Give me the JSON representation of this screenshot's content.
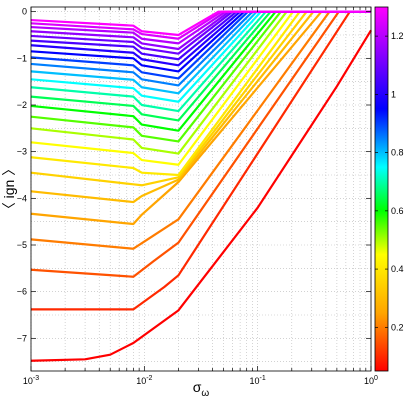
{
  "chart_data": {
    "type": "line",
    "xscale": "log",
    "xlim": [
      0.001,
      1
    ],
    "ylim": [
      -7.7,
      0.1
    ],
    "grid": true,
    "legend": "none",
    "x_ticks": [
      {
        "value": 0.001,
        "base": "10",
        "exp": "-3"
      },
      {
        "value": 0.01,
        "base": "10",
        "exp": "-2"
      },
      {
        "value": 0.1,
        "base": "10",
        "exp": "-1"
      },
      {
        "value": 1,
        "base": "10",
        "exp": "0"
      }
    ],
    "y_ticks": [
      0,
      -1,
      -2,
      -3,
      -4,
      -5,
      -6,
      -7
    ],
    "xlabel": {
      "base": "σ",
      "sub": "ω"
    },
    "ylabel": "〈 ign 〉",
    "colorbar": {
      "range": [
        0.05,
        1.3
      ],
      "ticks": [
        1.2,
        1,
        0.8,
        0.6,
        0.4,
        0.2
      ],
      "stops": [
        {
          "value": 0.05,
          "color": "#ff0000"
        },
        {
          "value": 0.25,
          "color": "#ffa500"
        },
        {
          "value": 0.45,
          "color": "#ffff00"
        },
        {
          "value": 0.6,
          "color": "#00ff00"
        },
        {
          "value": 0.75,
          "color": "#00ffff"
        },
        {
          "value": 0.95,
          "color": "#0000ff"
        },
        {
          "value": 1.3,
          "color": "#ff00ff"
        }
      ]
    },
    "dip_x": [
      0.008,
      0.0095,
      0.02
    ],
    "series": [
      {
        "c": 1.3,
        "values": [
          [
            0.001,
            -0.18
          ],
          [
            0.008,
            -0.3
          ],
          [
            0.0095,
            -0.42
          ],
          [
            0.02,
            -0.5
          ],
          [
            0.045,
            0.0
          ],
          [
            1,
            0.0
          ]
        ]
      },
      {
        "c": 1.25,
        "values": [
          [
            0.001,
            -0.25
          ],
          [
            0.008,
            -0.38
          ],
          [
            0.0095,
            -0.48
          ],
          [
            0.02,
            -0.58
          ],
          [
            0.048,
            0.0
          ],
          [
            1,
            0.0
          ]
        ]
      },
      {
        "c": 1.2,
        "values": [
          [
            0.001,
            -0.33
          ],
          [
            0.008,
            -0.45
          ],
          [
            0.0095,
            -0.58
          ],
          [
            0.02,
            -0.68
          ],
          [
            0.052,
            0.0
          ],
          [
            1,
            0.0
          ]
        ]
      },
      {
        "c": 1.15,
        "values": [
          [
            0.001,
            -0.42
          ],
          [
            0.008,
            -0.55
          ],
          [
            0.0095,
            -0.68
          ],
          [
            0.02,
            -0.8
          ],
          [
            0.056,
            0.0
          ],
          [
            1,
            0.0
          ]
        ]
      },
      {
        "c": 1.1,
        "values": [
          [
            0.001,
            -0.52
          ],
          [
            0.008,
            -0.65
          ],
          [
            0.0095,
            -0.78
          ],
          [
            0.02,
            -0.9
          ],
          [
            0.06,
            0.0
          ],
          [
            1,
            0.0
          ]
        ]
      },
      {
        "c": 1.05,
        "values": [
          [
            0.001,
            -0.62
          ],
          [
            0.008,
            -0.75
          ],
          [
            0.0095,
            -0.9
          ],
          [
            0.02,
            -1.02
          ],
          [
            0.065,
            0.0
          ],
          [
            1,
            0.0
          ]
        ]
      },
      {
        "c": 1.0,
        "values": [
          [
            0.001,
            -0.72
          ],
          [
            0.008,
            -0.88
          ],
          [
            0.0095,
            -1.02
          ],
          [
            0.02,
            -1.15
          ],
          [
            0.07,
            0.0
          ],
          [
            1,
            0.0
          ]
        ]
      },
      {
        "c": 0.95,
        "values": [
          [
            0.001,
            -0.85
          ],
          [
            0.008,
            -1.0
          ],
          [
            0.0095,
            -1.15
          ],
          [
            0.02,
            -1.28
          ],
          [
            0.076,
            0.0
          ],
          [
            1,
            0.0
          ]
        ]
      },
      {
        "c": 0.9,
        "values": [
          [
            0.001,
            -0.98
          ],
          [
            0.008,
            -1.15
          ],
          [
            0.0095,
            -1.3
          ],
          [
            0.02,
            -1.43
          ],
          [
            0.082,
            0.0
          ],
          [
            1,
            0.0
          ]
        ]
      },
      {
        "c": 0.85,
        "values": [
          [
            0.001,
            -1.12
          ],
          [
            0.008,
            -1.3
          ],
          [
            0.0095,
            -1.45
          ],
          [
            0.02,
            -1.58
          ],
          [
            0.09,
            0.0
          ],
          [
            1,
            0.0
          ]
        ]
      },
      {
        "c": 0.8,
        "values": [
          [
            0.001,
            -1.28
          ],
          [
            0.008,
            -1.46
          ],
          [
            0.0095,
            -1.62
          ],
          [
            0.02,
            -1.75
          ],
          [
            0.098,
            0.0
          ],
          [
            1,
            0.0
          ]
        ]
      },
      {
        "c": 0.75,
        "values": [
          [
            0.001,
            -1.45
          ],
          [
            0.008,
            -1.64
          ],
          [
            0.0095,
            -1.8
          ],
          [
            0.02,
            -1.93
          ],
          [
            0.107,
            0.0
          ],
          [
            1,
            0.0
          ]
        ]
      },
      {
        "c": 0.7,
        "values": [
          [
            0.001,
            -1.62
          ],
          [
            0.008,
            -1.82
          ],
          [
            0.0095,
            -2.0
          ],
          [
            0.02,
            -2.13
          ],
          [
            0.118,
            0.0
          ],
          [
            1,
            0.0
          ]
        ]
      },
      {
        "c": 0.65,
        "values": [
          [
            0.001,
            -1.82
          ],
          [
            0.008,
            -2.02
          ],
          [
            0.0095,
            -2.2
          ],
          [
            0.02,
            -2.33
          ],
          [
            0.13,
            0.0
          ],
          [
            1,
            0.0
          ]
        ]
      },
      {
        "c": 0.6,
        "values": [
          [
            0.001,
            -2.02
          ],
          [
            0.008,
            -2.24
          ],
          [
            0.0095,
            -2.42
          ],
          [
            0.02,
            -2.55
          ],
          [
            0.144,
            0.0
          ],
          [
            1,
            0.0
          ]
        ]
      },
      {
        "c": 0.55,
        "values": [
          [
            0.001,
            -2.25
          ],
          [
            0.008,
            -2.48
          ],
          [
            0.0095,
            -2.66
          ],
          [
            0.02,
            -2.78
          ],
          [
            0.16,
            0.0
          ],
          [
            1,
            0.0
          ]
        ]
      },
      {
        "c": 0.5,
        "values": [
          [
            0.001,
            -2.5
          ],
          [
            0.008,
            -2.74
          ],
          [
            0.0095,
            -2.92
          ],
          [
            0.02,
            -3.04
          ],
          [
            0.18,
            0.0
          ],
          [
            1,
            0.0
          ]
        ]
      },
      {
        "c": 0.45,
        "values": [
          [
            0.001,
            -2.8
          ],
          [
            0.008,
            -3.03
          ],
          [
            0.0095,
            -3.18
          ],
          [
            0.02,
            -3.28
          ],
          [
            0.205,
            0.0
          ],
          [
            1,
            0.0
          ]
        ]
      },
      {
        "c": 0.4,
        "values": [
          [
            0.001,
            -3.12
          ],
          [
            0.008,
            -3.35
          ],
          [
            0.0095,
            -3.45
          ],
          [
            0.02,
            -3.5
          ],
          [
            0.235,
            0.0
          ],
          [
            1,
            0.0
          ]
        ]
      },
      {
        "c": 0.35,
        "values": [
          [
            0.001,
            -3.45
          ],
          [
            0.008,
            -3.7
          ],
          [
            0.0095,
            -3.72
          ],
          [
            0.02,
            -3.55
          ],
          [
            0.27,
            0.0
          ],
          [
            1,
            0.0
          ]
        ]
      },
      {
        "c": 0.3,
        "values": [
          [
            0.001,
            -3.85
          ],
          [
            0.008,
            -4.08
          ],
          [
            0.0095,
            -3.95
          ],
          [
            0.02,
            -3.6
          ],
          [
            0.31,
            0.0
          ],
          [
            1,
            0.0
          ]
        ]
      },
      {
        "c": 0.25,
        "values": [
          [
            0.001,
            -4.33
          ],
          [
            0.008,
            -4.55
          ],
          [
            0.0095,
            -4.35
          ],
          [
            0.02,
            -3.65
          ],
          [
            0.365,
            0.0
          ],
          [
            1,
            0.0
          ]
        ]
      },
      {
        "c": 0.2,
        "values": [
          [
            0.001,
            -4.88
          ],
          [
            0.008,
            -5.08
          ],
          [
            0.012,
            -4.8
          ],
          [
            0.02,
            -4.45
          ],
          [
            0.43,
            0.0
          ],
          [
            1,
            0.0
          ]
        ]
      },
      {
        "c": 0.15,
        "values": [
          [
            0.001,
            -5.53
          ],
          [
            0.008,
            -5.68
          ],
          [
            0.012,
            -5.35
          ],
          [
            0.02,
            -4.95
          ],
          [
            0.52,
            0.0
          ],
          [
            1,
            0.0
          ]
        ]
      },
      {
        "c": 0.1,
        "values": [
          [
            0.001,
            -6.38
          ],
          [
            0.008,
            -6.38
          ],
          [
            0.015,
            -5.9
          ],
          [
            0.02,
            -5.65
          ],
          [
            0.65,
            0.0
          ],
          [
            1,
            0.0
          ]
        ]
      },
      {
        "c": 0.05,
        "values": [
          [
            0.001,
            -7.48
          ],
          [
            0.003,
            -7.45
          ],
          [
            0.005,
            -7.35
          ],
          [
            0.008,
            -7.1
          ],
          [
            0.02,
            -6.4
          ],
          [
            0.1,
            -4.2
          ],
          [
            0.5,
            -1.6
          ],
          [
            1,
            -0.4
          ]
        ]
      }
    ]
  }
}
